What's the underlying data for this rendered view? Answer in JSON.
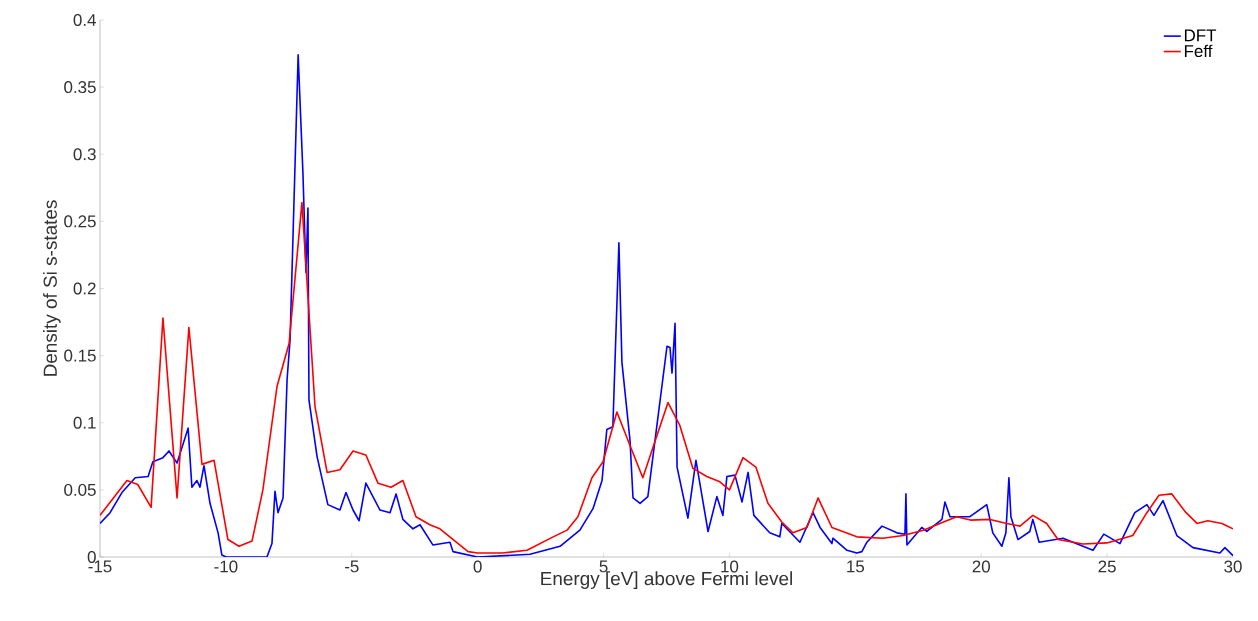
{
  "chart_data": {
    "type": "line",
    "xlabel": "Energy [eV] above Fermi level",
    "ylabel": "Density of Si s-states",
    "xlim": [
      -15,
      30
    ],
    "ylim": [
      0,
      0.4
    ],
    "xticks": [
      -15,
      -10,
      -5,
      0,
      5,
      10,
      15,
      20,
      25,
      30
    ],
    "yticks": [
      0,
      0.05,
      0.1,
      0.15,
      0.2,
      0.25,
      0.3,
      0.35,
      0.4
    ],
    "grid": false,
    "legend": "top right",
    "marker": "none",
    "line_style": "solid",
    "series": [
      {
        "name": "DFT",
        "color": "#0000ff",
        "x": [
          -15,
          -14.6,
          -14.13,
          -13.6,
          -13.09,
          -12.9,
          -12.5,
          -12.26,
          -11.94,
          -11.5,
          -11.35,
          -11.15,
          -11.03,
          -10.87,
          -10.63,
          -10.31,
          -10.16,
          -10.0,
          -8.37,
          -8.17,
          -8.05,
          -7.93,
          -7.73,
          -7.57,
          -7.45,
          -7.13,
          -6.94,
          -6.82,
          -6.74,
          -6.7,
          -6.38,
          -5.95,
          -5.47,
          -5.23,
          -4.95,
          -4.71,
          -4.44,
          -3.88,
          -3.48,
          -3.24,
          -2.97,
          -2.57,
          -2.29,
          -1.78,
          -1.1,
          -0.98,
          0,
          2.08,
          3.27,
          4.06,
          4.58,
          4.94,
          5.13,
          5.37,
          5.61,
          5.73,
          6.05,
          6.17,
          6.45,
          6.76,
          7.16,
          7.52,
          7.64,
          7.72,
          7.84,
          7.92,
          8.35,
          8.67,
          9.15,
          9.5,
          9.74,
          9.9,
          10.22,
          10.5,
          10.74,
          10.97,
          11.6,
          12.0,
          12.08,
          12.8,
          13.32,
          13.6,
          14.07,
          14.11,
          14.67,
          15.06,
          15.26,
          15.46,
          16.06,
          16.65,
          16.97,
          17.01,
          17.05,
          17.64,
          17.84,
          18.44,
          18.56,
          18.76,
          19.55,
          20.22,
          20.46,
          20.82,
          20.98,
          21.1,
          21.18,
          21.46,
          21.93,
          22.05,
          22.3,
          23.25,
          24.44,
          24.87,
          25.51,
          26.1,
          26.58,
          26.86,
          27.22,
          27.77,
          28.41,
          29.48,
          29.68,
          30
        ],
        "values": [
          0.025,
          0.033,
          0.048,
          0.059,
          0.06,
          0.071,
          0.074,
          0.079,
          0.07,
          0.096,
          0.052,
          0.057,
          0.052,
          0.068,
          0.04,
          0.018,
          0.0015,
          0,
          0,
          0.01,
          0.049,
          0.033,
          0.044,
          0.132,
          0.162,
          0.374,
          0.286,
          0.212,
          0.26,
          0.117,
          0.075,
          0.039,
          0.035,
          0.048,
          0.035,
          0.027,
          0.055,
          0.035,
          0.033,
          0.047,
          0.028,
          0.021,
          0.024,
          0.009,
          0.011,
          0.004,
          0,
          0.002,
          0.008,
          0.02,
          0.036,
          0.057,
          0.095,
          0.097,
          0.234,
          0.145,
          0.087,
          0.044,
          0.04,
          0.045,
          0.104,
          0.157,
          0.156,
          0.137,
          0.174,
          0.067,
          0.029,
          0.072,
          0.019,
          0.045,
          0.031,
          0.06,
          0.061,
          0.041,
          0.063,
          0.031,
          0.018,
          0.015,
          0.025,
          0.011,
          0.033,
          0.022,
          0.01,
          0.014,
          0.005,
          0.003,
          0.004,
          0.011,
          0.023,
          0.018,
          0.017,
          0.047,
          0.009,
          0.022,
          0.019,
          0.028,
          0.041,
          0.03,
          0.03,
          0.039,
          0.018,
          0.008,
          0.018,
          0.059,
          0.03,
          0.013,
          0.019,
          0.028,
          0.011,
          0.014,
          0.005,
          0.017,
          0.01,
          0.033,
          0.039,
          0.031,
          0.042,
          0.016,
          0.007,
          0.003,
          0.007,
          0.001
        ]
      },
      {
        "name": "Feff",
        "color": "#ff0000",
        "x": [
          -15,
          -13.93,
          -13.5,
          -12.97,
          -12.5,
          -11.94,
          -11.47,
          -10.95,
          -10.47,
          -9.92,
          -9.48,
          -8.96,
          -8.53,
          -7.97,
          -7.49,
          -6.98,
          -6.46,
          -5.98,
          -5.47,
          -4.95,
          -4.44,
          -3.96,
          -3.44,
          -2.97,
          -2.45,
          -1.9,
          -1.5,
          -0.38,
          0,
          1.0,
          1.96,
          3.0,
          3.55,
          3.98,
          4.54,
          4.98,
          5.53,
          6.05,
          6.56,
          7.56,
          8.03,
          8.55,
          9.1,
          9.62,
          10.0,
          10.54,
          11.05,
          11.53,
          12.08,
          12.52,
          13.08,
          13.52,
          14.07,
          14.5,
          15.06,
          16.1,
          16.9,
          17.7,
          18.5,
          19.03,
          19.57,
          20.35,
          21.02,
          21.54,
          22.05,
          22.6,
          23.05,
          24.04,
          24.99,
          26.02,
          26.58,
          27.06,
          27.57,
          28.09,
          28.57,
          29.0,
          29.56,
          30
        ],
        "values": [
          0.031,
          0.057,
          0.054,
          0.037,
          0.178,
          0.044,
          0.171,
          0.069,
          0.072,
          0.013,
          0.008,
          0.012,
          0.05,
          0.127,
          0.159,
          0.264,
          0.112,
          0.063,
          0.065,
          0.079,
          0.076,
          0.055,
          0.052,
          0.057,
          0.03,
          0.024,
          0.021,
          0.004,
          0.003,
          0.003,
          0.005,
          0.015,
          0.02,
          0.03,
          0.059,
          0.071,
          0.108,
          0.083,
          0.059,
          0.115,
          0.098,
          0.066,
          0.06,
          0.056,
          0.05,
          0.074,
          0.067,
          0.04,
          0.026,
          0.018,
          0.022,
          0.044,
          0.022,
          0.019,
          0.015,
          0.014,
          0.016,
          0.02,
          0.026,
          0.03,
          0.0275,
          0.028,
          0.025,
          0.023,
          0.031,
          0.025,
          0.013,
          0.0097,
          0.0105,
          0.016,
          0.033,
          0.046,
          0.047,
          0.034,
          0.025,
          0.027,
          0.025,
          0.021
        ]
      }
    ]
  }
}
